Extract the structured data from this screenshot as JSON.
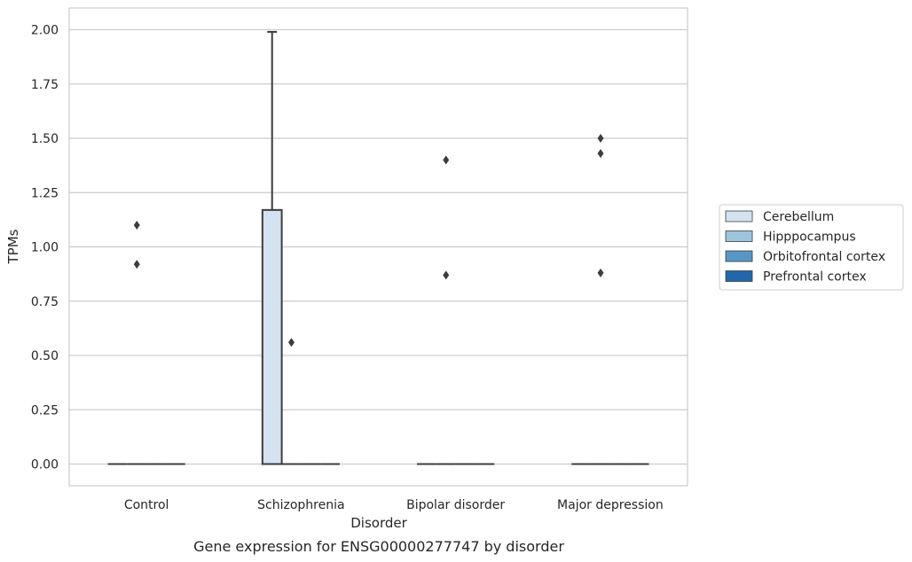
{
  "chart_data": {
    "type": "box",
    "caption": "Gene expression for ENSG00000277747 by disorder",
    "xlabel": "Disorder",
    "ylabel": "TPMs",
    "categories": [
      "Control",
      "Schizophrenia",
      "Bipolar disorder",
      "Major depression"
    ],
    "yticks": [
      "0.00",
      "0.25",
      "0.50",
      "0.75",
      "1.00",
      "1.25",
      "1.50",
      "1.75",
      "2.00"
    ],
    "ylim": [
      -0.1,
      2.1
    ],
    "grid": "horizontal",
    "legend_position": "right",
    "series": [
      {
        "name": "Cerebellum",
        "color": "#d4e2f1",
        "boxes": [
          {
            "category": "Control",
            "q1": 0,
            "median": 0,
            "q3": 0,
            "whisker_low": 0,
            "whisker_high": 0,
            "outliers": []
          },
          {
            "category": "Schizophrenia",
            "q1": 0,
            "median": 0,
            "q3": 1.17,
            "whisker_low": 0,
            "whisker_high": 1.99,
            "outliers": []
          },
          {
            "category": "Bipolar disorder",
            "q1": 0,
            "median": 0,
            "q3": 0,
            "whisker_low": 0,
            "whisker_high": 0,
            "outliers": []
          },
          {
            "category": "Major depression",
            "q1": 0,
            "median": 0,
            "q3": 0,
            "whisker_low": 0,
            "whisker_high": 0,
            "outliers": []
          }
        ]
      },
      {
        "name": "Hipppocampus",
        "color": "#9ec4dd",
        "boxes": [
          {
            "category": "Control",
            "q1": 0,
            "median": 0,
            "q3": 0,
            "whisker_low": 0,
            "whisker_high": 0,
            "outliers": [
              0.92,
              1.1
            ]
          },
          {
            "category": "Schizophrenia",
            "q1": 0,
            "median": 0,
            "q3": 0,
            "whisker_low": 0,
            "whisker_high": 0,
            "outliers": [
              0.56
            ]
          },
          {
            "category": "Bipolar disorder",
            "q1": 0,
            "median": 0,
            "q3": 0,
            "whisker_low": 0,
            "whisker_high": 0,
            "outliers": [
              0.87,
              1.4
            ]
          },
          {
            "category": "Major depression",
            "q1": 0,
            "median": 0,
            "q3": 0,
            "whisker_low": 0,
            "whisker_high": 0,
            "outliers": [
              0.88,
              1.43,
              1.5
            ]
          }
        ]
      },
      {
        "name": "Orbitofrontal cortex",
        "color": "#5897c5",
        "boxes": [
          {
            "category": "Control",
            "q1": 0,
            "median": 0,
            "q3": 0,
            "whisker_low": 0,
            "whisker_high": 0,
            "outliers": []
          },
          {
            "category": "Schizophrenia",
            "q1": 0,
            "median": 0,
            "q3": 0,
            "whisker_low": 0,
            "whisker_high": 0,
            "outliers": []
          },
          {
            "category": "Bipolar disorder",
            "q1": 0,
            "median": 0,
            "q3": 0,
            "whisker_low": 0,
            "whisker_high": 0,
            "outliers": []
          },
          {
            "category": "Major depression",
            "q1": 0,
            "median": 0,
            "q3": 0,
            "whisker_low": 0,
            "whisker_high": 0,
            "outliers": []
          }
        ]
      },
      {
        "name": "Prefrontal cortex",
        "color": "#2267ac",
        "boxes": [
          {
            "category": "Control",
            "q1": 0,
            "median": 0,
            "q3": 0,
            "whisker_low": 0,
            "whisker_high": 0,
            "outliers": []
          },
          {
            "category": "Schizophrenia",
            "q1": 0,
            "median": 0,
            "q3": 0,
            "whisker_low": 0,
            "whisker_high": 0,
            "outliers": []
          },
          {
            "category": "Bipolar disorder",
            "q1": 0,
            "median": 0,
            "q3": 0,
            "whisker_low": 0,
            "whisker_high": 0,
            "outliers": []
          },
          {
            "category": "Major depression",
            "q1": 0,
            "median": 0,
            "q3": 0,
            "whisker_low": 0,
            "whisker_high": 0,
            "outliers": []
          }
        ]
      }
    ]
  }
}
